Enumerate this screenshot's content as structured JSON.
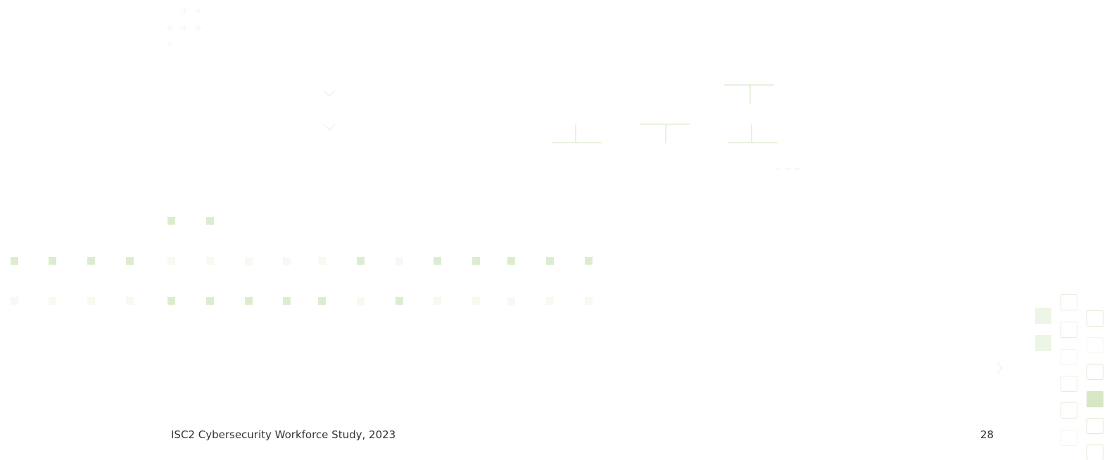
{
  "footer": {
    "title": "ISC2 Cybersecurity Workforce Study, 2023",
    "page_number": "28"
  },
  "colors": {
    "dot_strong": "#dcedcf",
    "dot_faint": "#f6faf1",
    "line": "#dfeed2",
    "box_outline": "#dde9cf",
    "box_fill_strong": "#d5e7c4",
    "box_fill_faint": "#edf5e6",
    "text": "#333333"
  }
}
